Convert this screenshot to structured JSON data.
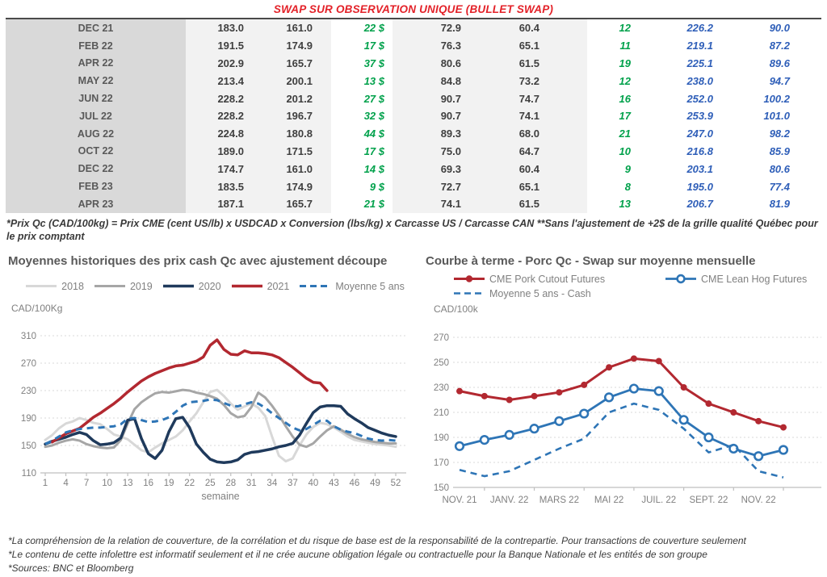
{
  "title": "SWAP SUR OBSERVATION UNIQUE (BULLET SWAP)",
  "colors": {
    "title_red": "#E32128",
    "green": "#00A14B",
    "blue": "#2E5EB8",
    "red_line": "#B22830",
    "navy": "#1F3A5C",
    "steel_blue": "#2E75B6",
    "gray_2019": "#A6A6A6",
    "light_gray_2018": "#D8D8D8",
    "axis_gray": "#808080"
  },
  "table": {
    "rows": [
      {
        "month": "DEC 21",
        "values": [
          "183.0",
          "161.0",
          "22 $",
          "72.9",
          "60.4",
          "12",
          "226.2",
          "90.0"
        ]
      },
      {
        "month": "FEB 22",
        "values": [
          "191.5",
          "174.9",
          "17 $",
          "76.3",
          "65.1",
          "11",
          "219.1",
          "87.2"
        ]
      },
      {
        "month": "APR 22",
        "values": [
          "202.9",
          "165.7",
          "37 $",
          "80.6",
          "61.5",
          "19",
          "225.1",
          "89.6"
        ]
      },
      {
        "month": "MAY 22",
        "values": [
          "213.4",
          "200.1",
          "13 $",
          "84.8",
          "73.2",
          "12",
          "238.0",
          "94.7"
        ]
      },
      {
        "month": "JUN 22",
        "values": [
          "228.2",
          "201.2",
          "27 $",
          "90.7",
          "74.7",
          "16",
          "252.0",
          "100.2"
        ]
      },
      {
        "month": "JUL 22",
        "values": [
          "228.2",
          "196.7",
          "32 $",
          "90.7",
          "74.1",
          "17",
          "253.9",
          "101.0"
        ]
      },
      {
        "month": "AUG 22",
        "values": [
          "224.8",
          "180.8",
          "44 $",
          "89.3",
          "68.0",
          "21",
          "247.0",
          "98.2"
        ]
      },
      {
        "month": "OCT 22",
        "values": [
          "189.0",
          "171.5",
          "17 $",
          "75.0",
          "64.7",
          "10",
          "216.8",
          "85.9"
        ]
      },
      {
        "month": "DEC 22",
        "values": [
          "174.7",
          "161.0",
          "14 $",
          "69.3",
          "60.4",
          "9",
          "203.1",
          "80.6"
        ]
      },
      {
        "month": "FEB 23",
        "values": [
          "183.5",
          "174.9",
          "9 $",
          "72.7",
          "65.1",
          "8",
          "195.0",
          "77.4"
        ]
      },
      {
        "month": "APR 23",
        "values": [
          "187.1",
          "165.7",
          "21 $",
          "74.1",
          "61.5",
          "13",
          "206.7",
          "81.9"
        ]
      }
    ],
    "cell_styles": [
      "num",
      "num",
      "green",
      "num",
      "num",
      "green",
      "blue",
      "blue"
    ]
  },
  "table_note": "*Prix Qc (CAD/100kg) = Prix CME (cent US/lb) x USDCAD x Conversion (lbs/kg) x Carcasse US / Carcasse CAN **Sans l'ajustement de +2$ de la grille qualité Québec pour le prix comptant",
  "footer": {
    "lines": [
      "*La compréhension de la relation de couverture, de la corrélation et du risque de base est de la responsabilité de la contrepartie. Pour transactions de couverture seulement",
      "*Le contenu de cette infolettre est informatif seulement et il ne crée aucune obligation légale ou contractuelle pour la Banque Nationale et les entités de son groupe",
      "*Sources: BNC et Bloomberg"
    ]
  },
  "chart_data": [
    {
      "type": "line",
      "title": "Moyennes historiques des prix cash Qc avec ajustement découpe",
      "unit_label": "CAD/100Kg",
      "xlabel": "semaine",
      "xlim": [
        1,
        52
      ],
      "ylim": [
        110,
        310
      ],
      "yticks": [
        110,
        150,
        190,
        230,
        270,
        310
      ],
      "xticks": [
        {
          "v": 1,
          "label": "1"
        },
        {
          "v": 4,
          "label": "4"
        },
        {
          "v": 7,
          "label": "7"
        },
        {
          "v": 10,
          "label": "10"
        },
        {
          "v": 13,
          "label": "13"
        },
        {
          "v": 16,
          "label": "16"
        },
        {
          "v": 19,
          "label": "19"
        },
        {
          "v": 22,
          "label": "22"
        },
        {
          "v": 25,
          "label": "25"
        },
        {
          "v": 28,
          "label": "28"
        },
        {
          "v": 31,
          "label": "31"
        },
        {
          "v": 34,
          "label": "34"
        },
        {
          "v": 37,
          "label": "37"
        },
        {
          "v": 40,
          "label": "40"
        },
        {
          "v": 43,
          "label": "43"
        },
        {
          "v": 46,
          "label": "46"
        },
        {
          "v": 49,
          "label": "49"
        },
        {
          "v": 52,
          "label": "52"
        }
      ],
      "x": [
        1,
        2,
        3,
        4,
        5,
        6,
        7,
        8,
        9,
        10,
        11,
        12,
        13,
        14,
        15,
        16,
        17,
        18,
        19,
        20,
        21,
        22,
        23,
        24,
        25,
        26,
        27,
        28,
        29,
        30,
        31,
        32,
        33,
        34,
        35,
        36,
        37,
        38,
        39,
        40,
        41,
        42,
        43,
        44,
        45,
        46,
        47,
        48,
        49,
        50,
        51,
        52
      ],
      "series": [
        {
          "name": "2018",
          "color": "#D8D8D8",
          "style": "solid",
          "width": 3,
          "values": [
            158,
            165,
            175,
            182,
            185,
            190,
            187,
            183,
            181,
            174,
            166,
            163,
            159,
            151,
            143,
            140,
            147,
            153,
            158,
            163,
            172,
            185,
            197,
            213,
            228,
            231,
            222,
            211,
            202,
            207,
            211,
            205,
            193,
            163,
            135,
            127,
            131,
            150,
            166,
            177,
            183,
            181,
            176,
            170,
            163,
            158,
            156,
            154,
            152,
            151,
            150,
            148
          ]
        },
        {
          "name": "2019",
          "color": "#A6A6A6",
          "style": "solid",
          "width": 3,
          "values": [
            148,
            150,
            154,
            157,
            159,
            157,
            152,
            149,
            147,
            146,
            147,
            158,
            182,
            203,
            213,
            220,
            226,
            228,
            227,
            229,
            231,
            230,
            227,
            225,
            222,
            218,
            209,
            197,
            191,
            193,
            206,
            227,
            220,
            208,
            194,
            178,
            163,
            151,
            148,
            153,
            163,
            172,
            178,
            173,
            167,
            162,
            159,
            157,
            155,
            154,
            153,
            153
          ]
        },
        {
          "name": "2020",
          "color": "#1F3A5C",
          "style": "solid",
          "width": 3.5,
          "values": [
            152,
            156,
            159,
            162,
            166,
            169,
            166,
            157,
            151,
            152,
            154,
            161,
            187,
            189,
            160,
            138,
            131,
            143,
            170,
            189,
            191,
            176,
            152,
            140,
            130,
            126,
            125,
            126,
            129,
            137,
            140,
            141,
            143,
            145,
            148,
            150,
            153,
            165,
            182,
            198,
            206,
            208,
            208,
            207,
            196,
            189,
            183,
            176,
            172,
            168,
            165,
            163
          ]
        },
        {
          "name": "2021",
          "color": "#B22830",
          "style": "solid",
          "width": 3.5,
          "values": [
            null,
            155,
            161,
            167,
            171,
            175,
            183,
            191,
            197,
            204,
            211,
            219,
            228,
            236,
            244,
            250,
            255,
            259,
            263,
            266,
            267,
            270,
            273,
            279,
            296,
            304,
            290,
            283,
            282,
            288,
            285,
            285,
            284,
            282,
            278,
            271,
            264,
            256,
            248,
            242,
            241,
            230,
            null,
            null,
            null,
            null,
            null,
            null,
            null,
            null,
            null,
            null
          ]
        },
        {
          "name": "Moyenne 5 ans",
          "color": "#2E75B6",
          "style": "dashed",
          "width": 3,
          "values": [
            152,
            157,
            163,
            169,
            172,
            174,
            175,
            176,
            176,
            177,
            178,
            181,
            189,
            190,
            187,
            184,
            185,
            187,
            191,
            199,
            208,
            213,
            214,
            215,
            217,
            216,
            212,
            208,
            207,
            210,
            213,
            211,
            205,
            197,
            190,
            183,
            176,
            172,
            174,
            180,
            186,
            186,
            178,
            173,
            170,
            168,
            164,
            160,
            158,
            157,
            158,
            157
          ]
        }
      ],
      "legend_position": "top",
      "grid": true
    },
    {
      "type": "line",
      "title": "Courbe à terme - Porc Qc - Swap sur moyenne mensuelle",
      "unit_label": "CAD/100k",
      "xlabel": "",
      "xlim": [
        0,
        13
      ],
      "ylim": [
        150,
        270
      ],
      "yticks": [
        150,
        170,
        190,
        210,
        230,
        250,
        270
      ],
      "xticks": [
        {
          "v": 0,
          "label": "NOV. 21"
        },
        {
          "v": 2,
          "label": "JANV. 22"
        },
        {
          "v": 4,
          "label": "MARS 22"
        },
        {
          "v": 6,
          "label": "MAI 22"
        },
        {
          "v": 8,
          "label": "JUIL. 22"
        },
        {
          "v": 10,
          "label": "SEPT. 22"
        },
        {
          "v": 12,
          "label": "NOV. 22"
        }
      ],
      "xminor": [
        1,
        3,
        5,
        7,
        9,
        11,
        13
      ],
      "x": [
        0,
        1,
        2,
        3,
        4,
        5,
        6,
        7,
        8,
        9,
        10,
        11,
        12,
        13
      ],
      "series": [
        {
          "name": "CME Pork Cutout Futures",
          "color": "#B22830",
          "style": "solid",
          "width": 3,
          "marker": "filled-circle",
          "values": [
            227,
            223,
            220,
            223,
            226,
            232,
            246,
            253,
            251,
            230,
            217,
            210,
            203,
            198
          ]
        },
        {
          "name": "CME Lean Hog Futures",
          "color": "#2E75B6",
          "style": "solid",
          "width": 2.8,
          "marker": "open-circle",
          "values": [
            183,
            188,
            192,
            197,
            203,
            209,
            222,
            229,
            227,
            204,
            190,
            181,
            175,
            180
          ]
        },
        {
          "name": "Moyenne 5 ans - Cash",
          "color": "#2E75B6",
          "style": "dashed",
          "width": 2.6,
          "values": [
            164,
            159,
            163,
            172,
            181,
            189,
            210,
            217,
            212,
            197,
            178,
            184,
            163,
            158
          ]
        }
      ],
      "legend_position": "top",
      "grid": true
    }
  ]
}
